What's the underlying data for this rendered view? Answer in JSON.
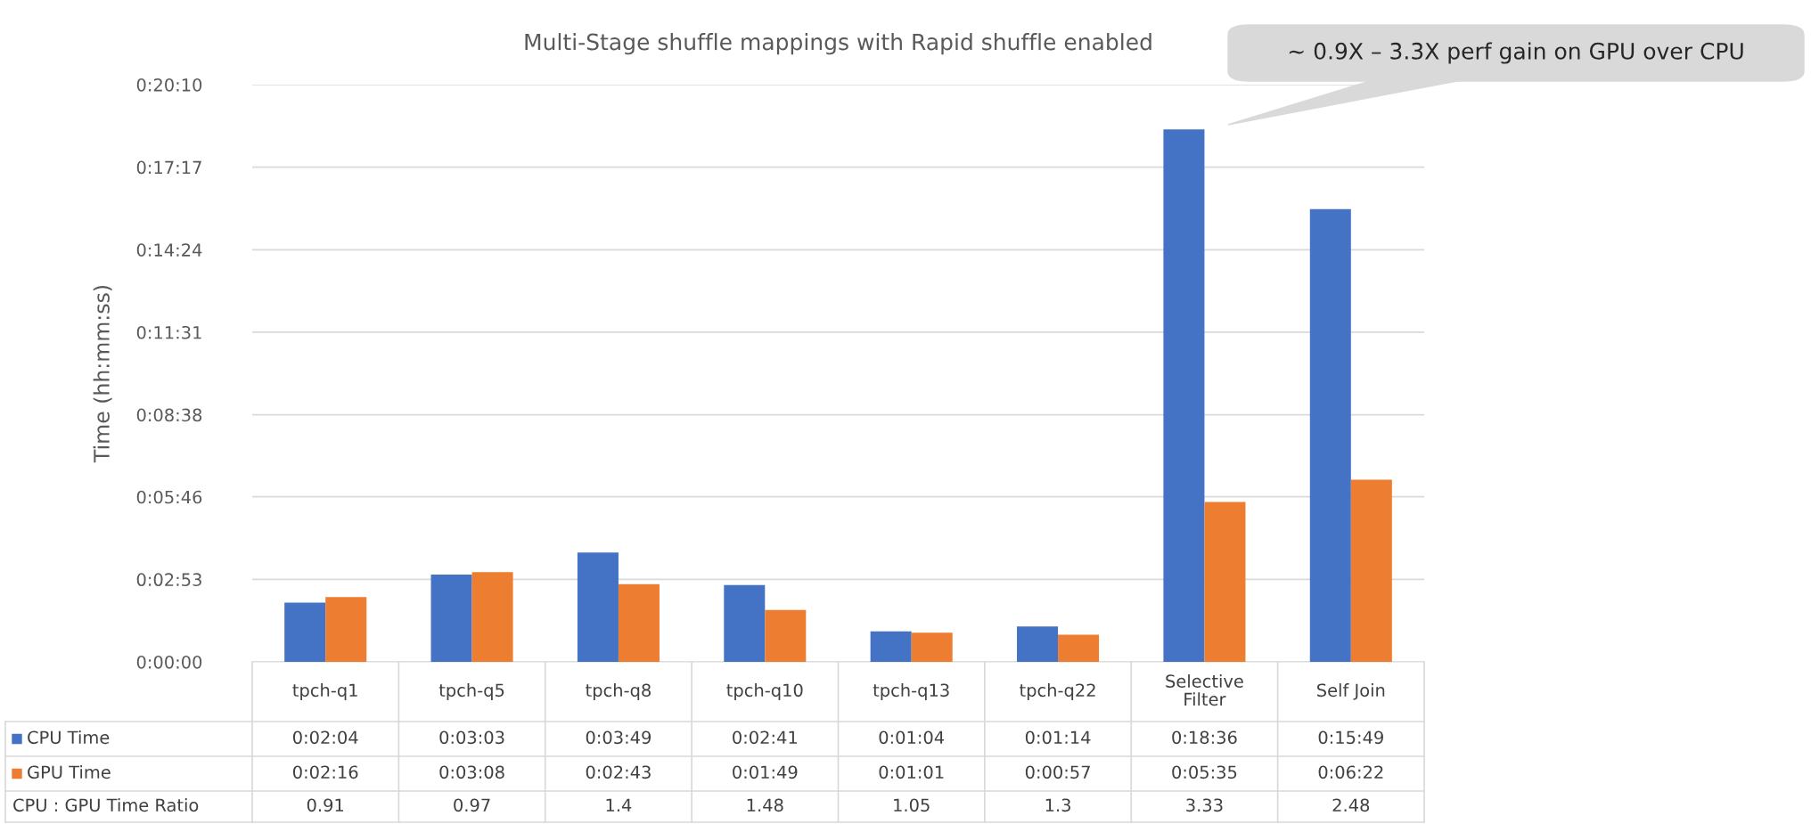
{
  "chart_data": {
    "type": "bar",
    "title": "Multi-Stage shuffle mappings with Rapid shuffle enabled",
    "ylabel": "Time (hh:mm:ss)",
    "categories": [
      "tpch-q1",
      "tpch-q5",
      "tpch-q8",
      "tpch-q10",
      "tpch-q13",
      "tpch-q22",
      "Selective\nFilter",
      "Self Join"
    ],
    "series": [
      {
        "name": "CPU Time",
        "color": "#4472c4",
        "values": [
          124,
          183,
          229,
          161,
          64,
          74,
          1116,
          949
        ],
        "value_labels": [
          "0:02:04",
          "0:03:03",
          "0:03:49",
          "0:02:41",
          "0:01:04",
          "0:01:14",
          "0:18:36",
          "0:15:49"
        ]
      },
      {
        "name": "GPU Time",
        "color": "#ed7d31",
        "values": [
          136,
          188,
          163,
          109,
          61,
          57,
          335,
          382
        ],
        "value_labels": [
          "0:02:16",
          "0:03:08",
          "0:02:43",
          "0:01:49",
          "0:01:01",
          "0:00:57",
          "0:05:35",
          "0:06:22"
        ]
      }
    ],
    "ylim": [
      0,
      1210
    ],
    "yticks": [
      {
        "value": 0,
        "label": "0:00:00"
      },
      {
        "value": 173,
        "label": "0:02:53"
      },
      {
        "value": 346,
        "label": "0:05:46"
      },
      {
        "value": 518,
        "label": "0:08:38"
      },
      {
        "value": 691,
        "label": "0:11:31"
      },
      {
        "value": 864,
        "label": "0:14:24"
      },
      {
        "value": 1037,
        "label": "0:17:17"
      },
      {
        "value": 1210,
        "label": "0:20:10"
      }
    ],
    "grid": "y",
    "legend": "bottom",
    "annotations": [
      "~ 0.9X – 3.3X perf gain on GPU over CPU",
      "CPU : GPU Time Ratio",
      "0.91",
      "0.97",
      "1.4",
      "1.48",
      "1.05",
      "1.3",
      "3.33",
      "2.48"
    ]
  }
}
